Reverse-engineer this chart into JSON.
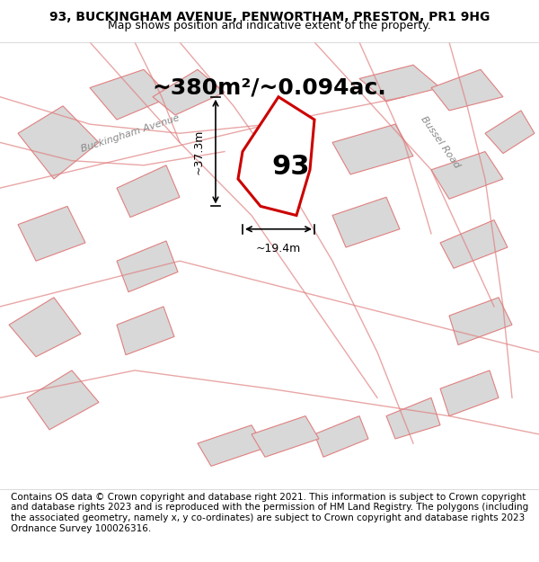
{
  "title": "93, BUCKINGHAM AVENUE, PENWORTHAM, PRESTON, PR1 9HG",
  "subtitle": "Map shows position and indicative extent of the property.",
  "area_text": "~380m²/~0.094ac.",
  "label_93": "93",
  "dim_width": "~19.4m",
  "dim_height": "~37.3m",
  "road_label_1": "Bussel Road",
  "road_label_2": "Buckingham Avenue",
  "footer": "Contains OS data © Crown copyright and database right 2021. This information is subject to Crown copyright and database rights 2023 and is reproduced with the permission of HM Land Registry. The polygons (including the associated geometry, namely x, y co-ordinates) are subject to Crown copyright and database rights 2023 Ordnance Survey 100026316.",
  "bg_color": "#f5f5f5",
  "map_bg": "#f0eeee",
  "plot_fill": "#f0f0f0",
  "plot_stroke": "#cc0000",
  "building_fill": "#d8d8d8",
  "building_stroke": "#c08080",
  "road_line_color": "#e08080",
  "title_fontsize": 10,
  "subtitle_fontsize": 9,
  "area_fontsize": 18,
  "label_fontsize": 22,
  "footer_fontsize": 7.5
}
